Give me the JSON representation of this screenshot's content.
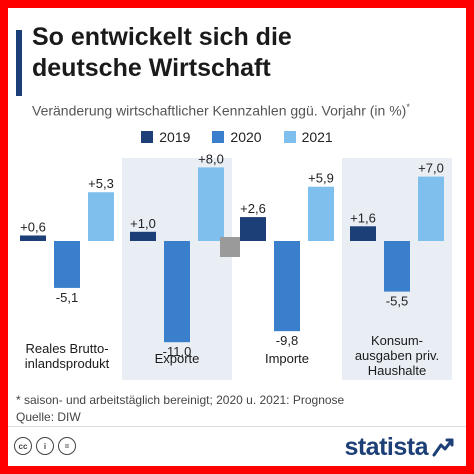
{
  "header": {
    "title_line1": "So entwickelt sich die",
    "title_line2": "deutsche Wirtschaft",
    "subtitle": "Veränderung wirtschaftlicher Kennzahlen ggü. Vorjahr (in %)",
    "subtitle_mark": "*"
  },
  "legend": {
    "items": [
      {
        "label": "2019",
        "color": "#1d3f77"
      },
      {
        "label": "2020",
        "color": "#3a7fcc"
      },
      {
        "label": "2021",
        "color": "#7fbfee"
      }
    ]
  },
  "chart_data": {
    "type": "bar",
    "categories": [
      [
        "Reales Brutto-",
        "inlandsprodukt"
      ],
      [
        "Exporte"
      ],
      [
        "Importe"
      ],
      [
        "Konsum-",
        "ausgaben priv.",
        "Haushalte"
      ]
    ],
    "series": [
      {
        "name": "2019",
        "values": [
          0.6,
          1.0,
          2.6,
          1.6
        ]
      },
      {
        "name": "2020",
        "values": [
          -5.1,
          -11.0,
          -9.8,
          -5.5
        ]
      },
      {
        "name": "2021",
        "values": [
          5.3,
          8.0,
          5.9,
          7.0
        ]
      }
    ],
    "value_labels": [
      [
        "+0,6",
        "+1,0",
        "+2,6",
        "+1,6"
      ],
      [
        "-5,1",
        "-11,0",
        "-9,8",
        "-5,5"
      ],
      [
        "+5,3",
        "+8,0",
        "+5,9",
        "+7,0"
      ]
    ],
    "colors": [
      "#1d3f77",
      "#3a7fcc",
      "#7fbfee"
    ],
    "shaded_categories": [
      1,
      3
    ],
    "ylim": [
      -11.5,
      8.5
    ],
    "grid": false,
    "legend_position": "top-center"
  },
  "footer": {
    "footnote": "* saison- und arbeitstäglich bereinigt; 2020 u. 2021: Prognose",
    "source": "Quelle: DIW",
    "brand": "statista",
    "cc_icons": [
      "cc-icon",
      "by-icon",
      "nd-icon"
    ]
  }
}
